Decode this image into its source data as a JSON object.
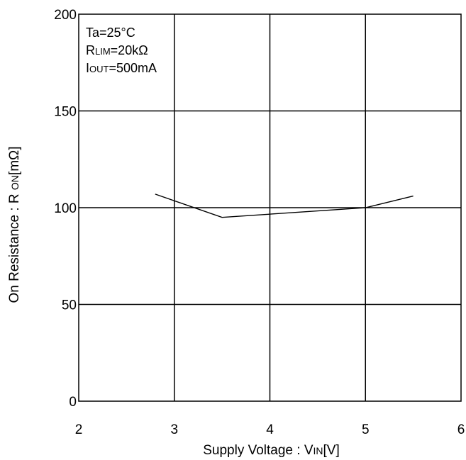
{
  "chart_data": {
    "type": "line",
    "xlabel": "Supply Voltage : VIN[V]",
    "xlabel_main": "Supply Voltage : V",
    "xlabel_sub": "IN",
    "xlabel_tail": "[V]",
    "ylabel_main": "On Resistance : R ",
    "ylabel_sub": "ON",
    "ylabel_tail": "[mΩ]",
    "xlim": [
      2,
      6
    ],
    "ylim": [
      0,
      200
    ],
    "x_ticks": [
      "2",
      "3",
      "4",
      "5",
      "6"
    ],
    "y_ticks": [
      "0",
      "50",
      "100",
      "150",
      "200"
    ],
    "grid": true,
    "annotations": [
      {
        "main": "Ta=25°C",
        "sub": "",
        "tail": ""
      },
      {
        "main": "R",
        "sub": "LIM",
        "tail": "=20kΩ"
      },
      {
        "main": "I",
        "sub": "OUT",
        "tail": "=500mA"
      }
    ],
    "series": [
      {
        "x": [
          2.8,
          3.5,
          5.0,
          5.5
        ],
        "y": [
          107,
          95,
          100,
          106
        ]
      }
    ]
  }
}
